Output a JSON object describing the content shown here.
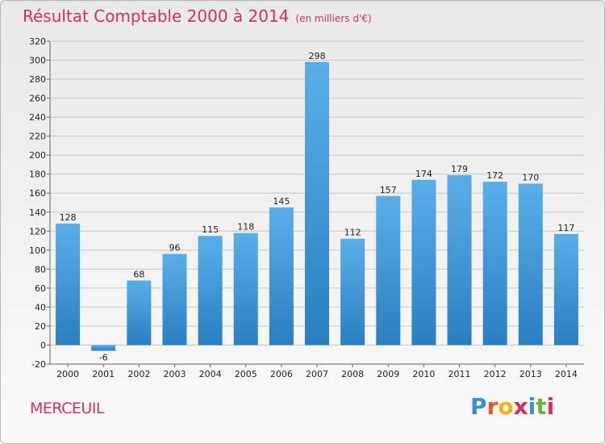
{
  "header": {
    "title": "Résultat Comptable 2000 à 2014",
    "subtitle": "(en milliers d'€)"
  },
  "footer": {
    "city": "MERCEUIL",
    "logo": {
      "text": "Proxiti",
      "letters": [
        "P",
        "r",
        "o",
        "x",
        "i",
        "t",
        "i"
      ],
      "colors": [
        "#3a8fd8",
        "#e8581c",
        "#f5b400",
        "#d4305e",
        "#3a8fd8",
        "#6cb43f",
        "#d4305e"
      ]
    }
  },
  "colors": {
    "accent": "#d4305e",
    "bar_top": "#5aaee8",
    "bar_bottom": "#2a7fc2",
    "grid": "#c8c8c8",
    "axis": "#666666"
  },
  "chart_data": {
    "type": "bar",
    "title": "Résultat Comptable 2000 à 2014",
    "subtitle": "(en milliers d'€)",
    "categories": [
      "2000",
      "2001",
      "2002",
      "2003",
      "2004",
      "2005",
      "2006",
      "2007",
      "2008",
      "2009",
      "2010",
      "2011",
      "2012",
      "2013",
      "2014"
    ],
    "values": [
      128,
      -6,
      68,
      96,
      115,
      118,
      145,
      298,
      112,
      157,
      174,
      179,
      172,
      170,
      117
    ],
    "ylim": [
      -20,
      320
    ],
    "yticks": [
      -20,
      0,
      20,
      40,
      60,
      80,
      100,
      120,
      140,
      160,
      180,
      200,
      220,
      240,
      260,
      280,
      300,
      320
    ],
    "grid": true,
    "legend": "none"
  }
}
